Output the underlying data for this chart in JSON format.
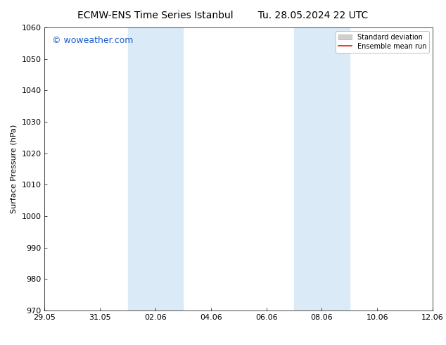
{
  "title_left": "ECMW-ENS Time Series Istanbul",
  "title_right": "Tu. 28.05.2024 22 UTC",
  "ylabel": "Surface Pressure (hPa)",
  "ylim": [
    970,
    1060
  ],
  "yticks": [
    970,
    980,
    990,
    1000,
    1010,
    1020,
    1030,
    1040,
    1050,
    1060
  ],
  "xlim": [
    0,
    14
  ],
  "xtick_labels": [
    "29.05",
    "31.05",
    "02.06",
    "04.06",
    "06.06",
    "08.06",
    "10.06",
    "12.06"
  ],
  "xtick_positions": [
    0,
    2,
    4,
    6,
    8,
    10,
    12,
    14
  ],
  "shade_regions": [
    {
      "start": 3.0,
      "end": 5.0
    },
    {
      "start": 9.0,
      "end": 11.0
    }
  ],
  "shade_color": "#daeaf7",
  "background_color": "#ffffff",
  "watermark_text": "© woweather.com",
  "watermark_color": "#1a5ccc",
  "watermark_fontsize": 9,
  "legend_std_label": "Standard deviation",
  "legend_mean_label": "Ensemble mean run",
  "legend_std_color": "#d0d0d0",
  "legend_std_edge": "#aaaaaa",
  "legend_mean_color": "#dd2200",
  "title_fontsize": 10,
  "ylabel_fontsize": 8,
  "tick_fontsize": 8,
  "axes_linewidth": 0.5,
  "figure_bg": "#ffffff",
  "axes_bg": "#ffffff"
}
